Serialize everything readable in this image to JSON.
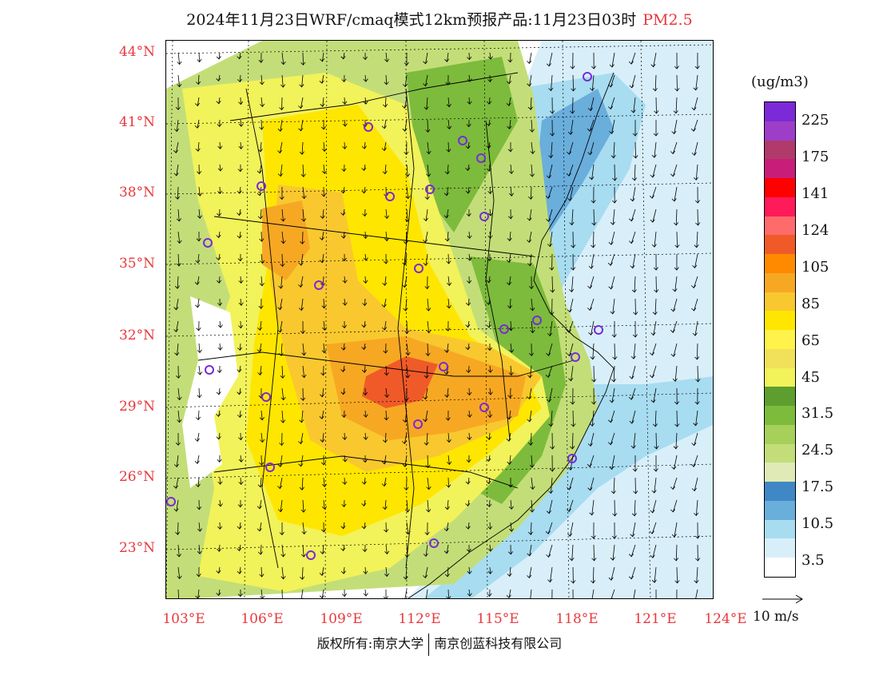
{
  "title": {
    "main": "2024年11月23日WRF/cmaq模式12km预报产品:11月23日03时",
    "species": "PM2.5"
  },
  "axes": {
    "lat_labels": [
      "44°N",
      "41°N",
      "38°N",
      "35°N",
      "32°N",
      "29°N",
      "26°N",
      "23°N"
    ],
    "lon_labels": [
      "103°E",
      "106°E",
      "109°E",
      "112°E",
      "115°E",
      "118°E",
      "121°E",
      "124°E"
    ]
  },
  "colorbar": {
    "unit": "(ug/m3)",
    "labels": [
      "225",
      "175",
      "141",
      "124",
      "105",
      "85",
      "65",
      "45",
      "31.5",
      "24.5",
      "17.5",
      "10.5",
      "3.5"
    ],
    "colors_top_to_bottom": [
      "#7a2ad6",
      "#9d3ec9",
      "#b03a6a",
      "#c81e7a",
      "#ff0000",
      "#ff1a5a",
      "#ff6a6a",
      "#f05a28",
      "#ff8a00",
      "#f7a823",
      "#f9c82f",
      "#ffe600",
      "#fff24a",
      "#f0e05a",
      "#f2f25a",
      "#5e9e2e",
      "#7dbb3c",
      "#a6d05a",
      "#c3de78",
      "#dfeab6",
      "#3f88c5",
      "#6aaedc",
      "#a8dcf0",
      "#d8effa",
      "#ffffff"
    ]
  },
  "wind_reference": {
    "label": "10 m/s"
  },
  "footer": {
    "left": "版权所有:南京大学",
    "right": "南京创蓝科技有限公司"
  },
  "map": {
    "fill_colors": {
      "ocean_low": "#ffffff",
      "light_blue": "#d8effa",
      "blue": "#a8dcf0",
      "mid_blue": "#6aaedc",
      "dark_blue": "#3f88c5",
      "pale_green": "#dfeab6",
      "light_green": "#c3de78",
      "green": "#7dbb3c",
      "dark_green": "#5e9e2e",
      "pale_yellow": "#f2f25a",
      "yellow": "#ffe600",
      "gold": "#f9c82f",
      "orange_light": "#f7a823",
      "orange": "#f05a28"
    },
    "city_marker_color": "#7a2ad6"
  }
}
